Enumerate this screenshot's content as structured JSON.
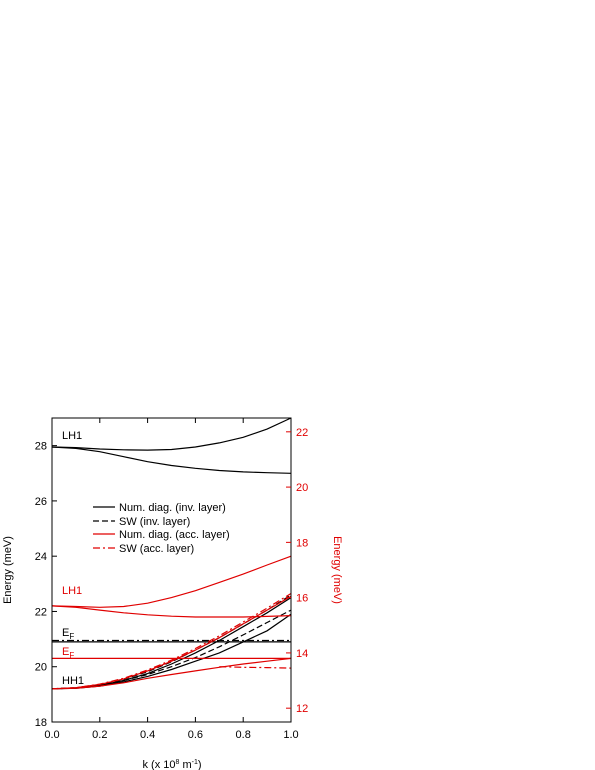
{
  "chart_data": {
    "type": "line",
    "xlabel_prefix": "k (x 10",
    "xlabel_exp": "8",
    "xlabel_mid": " m",
    "xlabel_exp2": "-1",
    "xlabel_suffix": ")",
    "ylabel_left": "Energy (meV)",
    "ylabel_right": "Energy (meV)",
    "xlim": [
      0.0,
      1.0
    ],
    "ylim_left": [
      18,
      29
    ],
    "ylim_right": [
      11.5,
      22.5
    ],
    "x_ticks": [
      "0.0",
      "0.2",
      "0.4",
      "0.6",
      "0.8",
      "1.0"
    ],
    "y_left_ticks": [
      "18",
      "20",
      "22",
      "24",
      "26",
      "28"
    ],
    "y_right_ticks": [
      "12",
      "14",
      "16",
      "18",
      "20",
      "22"
    ],
    "colors": {
      "inv": "#000000",
      "acc": "#e00000"
    },
    "legend": {
      "placement": "center-left",
      "entries": [
        {
          "label": "Num. diag. (inv. layer)",
          "color": "#000000",
          "style": "solid"
        },
        {
          "label": "SW (inv. layer)",
          "color": "#000000",
          "style": "dashed"
        },
        {
          "label": "Num. diag. (acc. layer)",
          "color": "#e00000",
          "style": "solid"
        },
        {
          "label": "SW (acc. layer)",
          "color": "#e00000",
          "style": "dashdot"
        }
      ]
    },
    "annotations": {
      "lh1_inv": "LH1",
      "lh1_acc": "LH1",
      "ef_inv_base": "E",
      "ef_inv_sub": "F",
      "ef_acc_base": "E",
      "ef_acc_sub": "F",
      "hh1": "HH1"
    },
    "series": [
      {
        "color": "#000000",
        "style": "solid",
        "axis": "left",
        "x": [
          0,
          0.1,
          0.2,
          0.3,
          0.4,
          0.5,
          0.6,
          0.7,
          0.8,
          0.9,
          1.0
        ],
        "y": [
          27.95,
          27.93,
          27.88,
          27.85,
          27.84,
          27.86,
          27.95,
          28.1,
          28.3,
          28.6,
          29.0
        ]
      },
      {
        "color": "#000000",
        "style": "solid",
        "axis": "left",
        "x": [
          0,
          0.1,
          0.2,
          0.3,
          0.4,
          0.5,
          0.6,
          0.7,
          0.8,
          0.9,
          1.0
        ],
        "y": [
          27.95,
          27.9,
          27.78,
          27.6,
          27.42,
          27.28,
          27.18,
          27.1,
          27.05,
          27.02,
          27.0
        ]
      },
      {
        "color": "#000000",
        "style": "solid",
        "axis": "left",
        "x": [
          0,
          1.0
        ],
        "y": [
          20.9,
          20.9
        ]
      },
      {
        "color": "#000000",
        "style": "dashdot",
        "axis": "left",
        "x": [
          0,
          1.0
        ],
        "y": [
          20.95,
          20.95
        ]
      },
      {
        "color": "#000000",
        "style": "solid",
        "axis": "left",
        "x": [
          0,
          0.1,
          0.2,
          0.3,
          0.4,
          0.5,
          0.6,
          0.7,
          0.8,
          0.9,
          1.0
        ],
        "y": [
          19.2,
          19.22,
          19.3,
          19.45,
          19.65,
          19.9,
          20.2,
          20.5,
          20.9,
          21.3,
          21.9
        ]
      },
      {
        "color": "#000000",
        "style": "solid",
        "axis": "left",
        "x": [
          0,
          0.1,
          0.2,
          0.3,
          0.4,
          0.5,
          0.6,
          0.7,
          0.8,
          0.9,
          1.0
        ],
        "y": [
          19.2,
          19.23,
          19.32,
          19.5,
          19.75,
          20.1,
          20.5,
          20.95,
          21.45,
          21.95,
          22.5
        ]
      },
      {
        "color": "#000000",
        "style": "dashed",
        "axis": "left",
        "x": [
          0,
          0.1,
          0.2,
          0.3,
          0.4,
          0.5,
          0.6,
          0.7,
          0.8,
          0.9,
          1.0
        ],
        "y": [
          19.2,
          19.23,
          19.32,
          19.5,
          19.72,
          20.0,
          20.33,
          20.72,
          21.15,
          21.6,
          22.05
        ]
      },
      {
        "color": "#000000",
        "style": "dashed",
        "axis": "left",
        "x": [
          0,
          0.1,
          0.2,
          0.3,
          0.4,
          0.5,
          0.6,
          0.7,
          0.8,
          0.9,
          1.0
        ],
        "y": [
          19.2,
          19.24,
          19.35,
          19.55,
          19.82,
          20.18,
          20.6,
          21.05,
          21.55,
          22.05,
          22.6
        ]
      },
      {
        "color": "#e00000",
        "style": "solid",
        "axis": "left",
        "x": [
          0,
          0.1,
          0.2,
          0.3,
          0.4,
          0.5,
          0.6,
          0.7,
          0.8,
          0.9,
          1.0
        ],
        "y": [
          22.2,
          22.18,
          22.15,
          22.18,
          22.3,
          22.5,
          22.75,
          23.05,
          23.35,
          23.68,
          24.0
        ]
      },
      {
        "color": "#e00000",
        "style": "solid",
        "axis": "left",
        "x": [
          0,
          0.1,
          0.2,
          0.3,
          0.4,
          0.5,
          0.6,
          0.7,
          0.8,
          0.9,
          1.0
        ],
        "y": [
          22.2,
          22.15,
          22.05,
          21.95,
          21.88,
          21.83,
          21.8,
          21.8,
          21.8,
          21.82,
          21.85
        ]
      },
      {
        "color": "#e00000",
        "style": "solid",
        "axis": "left",
        "x": [
          0,
          1.0
        ],
        "y": [
          20.3,
          20.3
        ]
      },
      {
        "color": "#e00000",
        "style": "solid",
        "axis": "left",
        "x": [
          0,
          0.1,
          0.2,
          0.3,
          0.4,
          0.5,
          0.6,
          0.7,
          0.8,
          0.9,
          1.0
        ],
        "y": [
          19.2,
          19.22,
          19.3,
          19.42,
          19.58,
          19.72,
          19.85,
          19.98,
          20.1,
          20.2,
          20.3
        ]
      },
      {
        "color": "#e00000",
        "style": "solid",
        "axis": "left",
        "x": [
          0,
          0.1,
          0.2,
          0.3,
          0.4,
          0.5,
          0.6,
          0.7,
          0.8,
          0.9,
          1.0
        ],
        "y": [
          19.2,
          19.24,
          19.36,
          19.56,
          19.85,
          20.2,
          20.6,
          21.05,
          21.55,
          22.05,
          22.55
        ]
      },
      {
        "color": "#e00000",
        "style": "dashdot",
        "axis": "left",
        "x": [
          0,
          0.1,
          0.2,
          0.3,
          0.4,
          0.5,
          0.6,
          0.7,
          0.8,
          0.9,
          1.0
        ],
        "y": [
          19.2,
          19.24,
          19.37,
          19.58,
          19.88,
          20.24,
          20.66,
          21.12,
          21.62,
          22.12,
          22.65
        ]
      },
      {
        "color": "#e00000",
        "style": "dashdot",
        "axis": "left",
        "x": [
          0.7,
          0.8,
          0.9,
          1.0
        ],
        "y": [
          20.0,
          19.98,
          19.97,
          19.95
        ]
      }
    ]
  }
}
